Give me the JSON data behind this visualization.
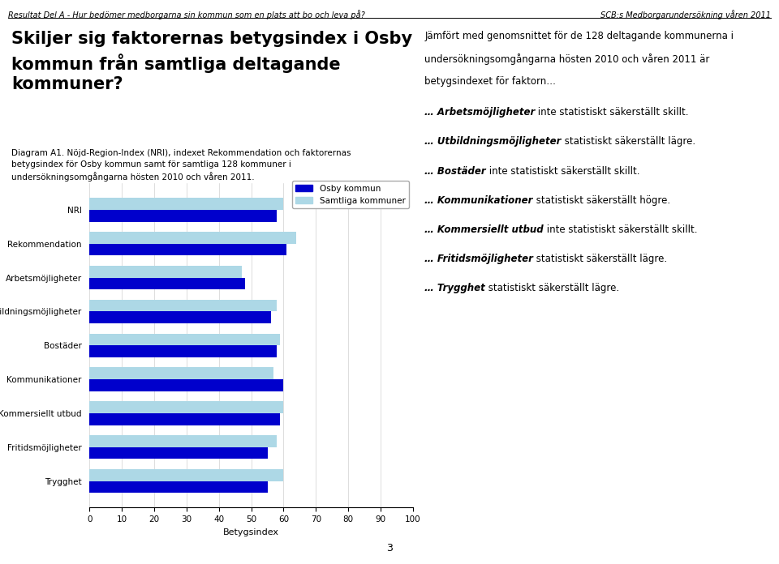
{
  "categories": [
    "NRI",
    "Rekommendation",
    "Arbetsmöjligheter",
    "Utbildningsmöjligheter",
    "Bostäder",
    "Kommunikationer",
    "Kommersiellt utbud",
    "Fritidsmöjligheter",
    "Trygghet"
  ],
  "osby_values": [
    58,
    61,
    48,
    56,
    58,
    60,
    59,
    55,
    55
  ],
  "samtliga_values": [
    60,
    64,
    47,
    58,
    59,
    57,
    60,
    58,
    60
  ],
  "osby_color": "#0000CC",
  "samtliga_color": "#ADD8E6",
  "legend_osby": "Osby kommun",
  "legend_samtliga": "Samtliga kommuner",
  "xlabel": "Betygsindex",
  "xlim": [
    0,
    100
  ],
  "xticks": [
    0,
    10,
    20,
    30,
    40,
    50,
    60,
    70,
    80,
    90,
    100
  ],
  "header_left": "Resultat Del A - Hur bedömer medborgarna sin kommun som en plats att bo och leva på?",
  "header_right": "SCB:s Medborgarundersökning våren 2011",
  "title_line1": "Skiljer sig faktorernas betygsindex i Osby",
  "title_line2": "kommun från samtliga deltagande",
  "title_line3": "kommuner?",
  "diagram_label_line1": "Diagram A1. Nöjd-Region-Index (NRI), indexet Rekommendation och faktorernas",
  "diagram_label_line2": "betygsindex för Osby kommun samt för samtliga 128 kommuner i",
  "diagram_label_line3": "undersökningsomgångarna hösten 2010 och våren 2011.",
  "intro_text_line1": "Jämfört med genomsnittet för de 128 deltagande kommunerna i",
  "intro_text_line2": "undersökningsomgångarna hösten 2010 och våren 2011 är",
  "intro_text_line3": "betygsindexet för faktorn…",
  "bullet_items": [
    {
      "bold": "Arbetsmöjligheter",
      "rest": " inte statistiskt säkerställt skillt."
    },
    {
      "bold": "Utbildningsmöjligheter",
      "rest": " statistiskt säkerställt lägre."
    },
    {
      "bold": "Bostäder",
      "rest": " inte statistiskt säkerställt skillt."
    },
    {
      "bold": "Kommunikationer",
      "rest": " statistiskt säkerställt högre."
    },
    {
      "bold": "Kommersiellt utbud",
      "rest": " inte statistiskt säkerställt skillt."
    },
    {
      "bold": "Fritidsmöjligheter",
      "rest": " statistiskt säkerställt lägre."
    },
    {
      "bold": "Trygghet",
      "rest": " statistiskt säkerställt lägre."
    }
  ],
  "bar_height": 0.35,
  "fig_width": 9.6,
  "fig_height": 6.96,
  "page_number": "3"
}
